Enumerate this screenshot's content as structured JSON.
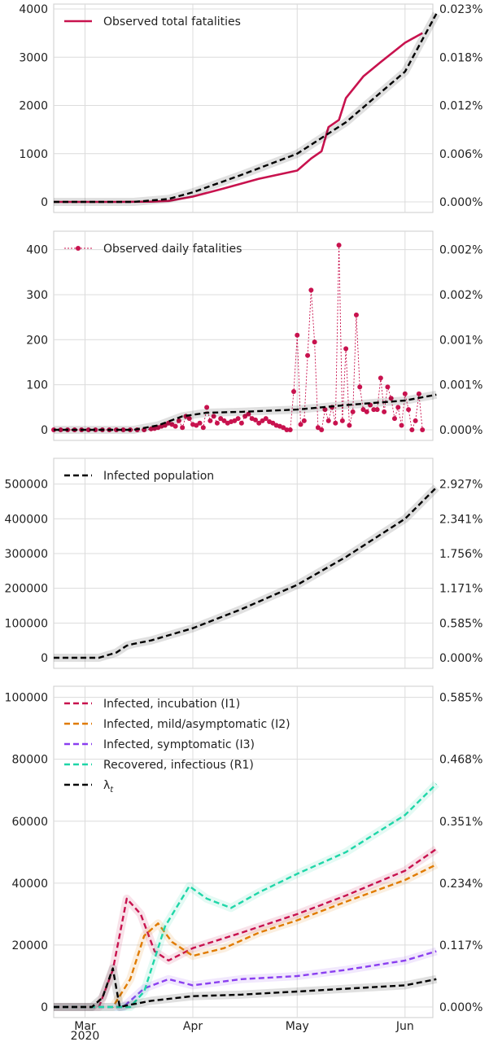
{
  "colors": {
    "observed": "#c8124e",
    "model": "#000000",
    "i1": "#c8124e",
    "i2": "#e07b00",
    "i3": "#8a3ff0",
    "r1": "#1fd6a8",
    "grid": "#dcdcdc",
    "axes_bg": "#eaeaf2"
  },
  "chart_data": [
    {
      "type": "line",
      "panel": "cumulative_fatalities",
      "x_ticks": [
        "Mar\n2020",
        "Apr",
        "May",
        "Jun"
      ],
      "left_ticks": [
        "0",
        "1000",
        "2000",
        "3000",
        "4000"
      ],
      "right_ticks": [
        "0.000%",
        "0.006%",
        "0.012%",
        "0.018%",
        "0.023%"
      ],
      "ylim": [
        0,
        4000
      ],
      "legend": [
        "Observed total fatalities"
      ],
      "series": [
        {
          "name": "Observed total fatalities",
          "style": "solid",
          "color": "observed",
          "x": [
            "2020-02-21",
            "2020-03-10",
            "2020-03-20",
            "2020-03-25",
            "2020-04-01",
            "2020-04-10",
            "2020-04-20",
            "2020-05-01",
            "2020-05-05",
            "2020-05-08",
            "2020-05-10",
            "2020-05-13",
            "2020-05-15",
            "2020-05-20",
            "2020-05-25",
            "2020-06-01",
            "2020-06-06"
          ],
          "y": [
            0,
            0,
            5,
            20,
            110,
            280,
            480,
            650,
            900,
            1050,
            1550,
            1700,
            2150,
            2600,
            2900,
            3300,
            3500
          ]
        },
        {
          "name": "model",
          "style": "dashed",
          "color": "model",
          "x": [
            "2020-02-21",
            "2020-03-15",
            "2020-03-25",
            "2020-04-01",
            "2020-04-15",
            "2020-05-01",
            "2020-05-15",
            "2020-06-01",
            "2020-06-10"
          ],
          "y": [
            0,
            0,
            60,
            200,
            560,
            1000,
            1650,
            2700,
            3900
          ]
        }
      ]
    },
    {
      "type": "line",
      "panel": "daily_fatalities",
      "x_ticks": [
        "Mar\n2020",
        "Apr",
        "May",
        "Jun"
      ],
      "left_ticks": [
        "0",
        "100",
        "200",
        "300",
        "400"
      ],
      "right_ticks": [
        "0.000%",
        "0.001%",
        "0.001%",
        "0.002%",
        "0.002%"
      ],
      "ylim": [
        0,
        430
      ],
      "legend": [
        "Observed daily fatalities"
      ],
      "series": [
        {
          "name": "Observed daily fatalities",
          "style": "dotted-markers",
          "color": "observed",
          "x": [
            "2020-02-21",
            "2020-02-23",
            "2020-02-25",
            "2020-02-27",
            "2020-02-29",
            "2020-03-02",
            "2020-03-04",
            "2020-03-06",
            "2020-03-08",
            "2020-03-10",
            "2020-03-12",
            "2020-03-14",
            "2020-03-16",
            "2020-03-18",
            "2020-03-20",
            "2020-03-21",
            "2020-03-22",
            "2020-03-23",
            "2020-03-24",
            "2020-03-25",
            "2020-03-26",
            "2020-03-27",
            "2020-03-28",
            "2020-03-29",
            "2020-03-30",
            "2020-03-31",
            "2020-04-01",
            "2020-04-02",
            "2020-04-03",
            "2020-04-04",
            "2020-04-05",
            "2020-04-06",
            "2020-04-07",
            "2020-04-08",
            "2020-04-09",
            "2020-04-10",
            "2020-04-11",
            "2020-04-12",
            "2020-04-13",
            "2020-04-14",
            "2020-04-15",
            "2020-04-16",
            "2020-04-17",
            "2020-04-18",
            "2020-04-19",
            "2020-04-20",
            "2020-04-21",
            "2020-04-22",
            "2020-04-23",
            "2020-04-24",
            "2020-04-25",
            "2020-04-26",
            "2020-04-27",
            "2020-04-28",
            "2020-04-29",
            "2020-04-30",
            "2020-05-01",
            "2020-05-02",
            "2020-05-03",
            "2020-05-04",
            "2020-05-05",
            "2020-05-06",
            "2020-05-07",
            "2020-05-08",
            "2020-05-09",
            "2020-05-10",
            "2020-05-11",
            "2020-05-12",
            "2020-05-13",
            "2020-05-14",
            "2020-05-15",
            "2020-05-16",
            "2020-05-17",
            "2020-05-18",
            "2020-05-19",
            "2020-05-20",
            "2020-05-21",
            "2020-05-22",
            "2020-05-23",
            "2020-05-24",
            "2020-05-25",
            "2020-05-26",
            "2020-05-27",
            "2020-05-28",
            "2020-05-29",
            "2020-05-30",
            "2020-05-31",
            "2020-06-01",
            "2020-06-02",
            "2020-06-03",
            "2020-06-04",
            "2020-06-05",
            "2020-06-06"
          ],
          "y": [
            0,
            0,
            0,
            0,
            0,
            0,
            0,
            0,
            0,
            0,
            0,
            0,
            0,
            0,
            2,
            3,
            5,
            8,
            10,
            15,
            12,
            8,
            20,
            5,
            30,
            25,
            12,
            10,
            15,
            5,
            50,
            20,
            30,
            15,
            25,
            20,
            15,
            18,
            20,
            25,
            15,
            30,
            35,
            25,
            22,
            15,
            20,
            25,
            18,
            15,
            10,
            8,
            5,
            0,
            0,
            85,
            210,
            12,
            20,
            165,
            310,
            195,
            5,
            0,
            45,
            20,
            50,
            15,
            410,
            20,
            180,
            10,
            40,
            255,
            95,
            45,
            40,
            55,
            45,
            45,
            115,
            40,
            95,
            70,
            25,
            50,
            10,
            80,
            45,
            0,
            20,
            80,
            0
          ]
        },
        {
          "name": "model",
          "style": "dashed",
          "color": "model",
          "x": [
            "2020-02-21",
            "2020-03-15",
            "2020-03-22",
            "2020-03-29",
            "2020-04-05",
            "2020-04-15",
            "2020-05-01",
            "2020-05-15",
            "2020-06-01",
            "2020-06-10"
          ],
          "y": [
            0,
            0,
            10,
            30,
            38,
            40,
            45,
            55,
            65,
            78
          ]
        }
      ]
    },
    {
      "type": "line",
      "panel": "infected_population",
      "x_ticks": [
        "Mar\n2020",
        "Apr",
        "May",
        "Jun"
      ],
      "left_ticks": [
        "0",
        "100000",
        "200000",
        "300000",
        "400000",
        "500000"
      ],
      "right_ticks": [
        "0.000%",
        "0.585%",
        "1.171%",
        "1.756%",
        "2.341%",
        "2.927%"
      ],
      "ylim": [
        0,
        560000
      ],
      "legend": [
        "Infected population"
      ],
      "series": [
        {
          "name": "Infected population",
          "style": "dashed",
          "color": "model",
          "x": [
            "2020-02-21",
            "2020-03-05",
            "2020-03-10",
            "2020-03-13",
            "2020-03-15",
            "2020-03-20",
            "2020-04-01",
            "2020-04-15",
            "2020-05-01",
            "2020-05-15",
            "2020-06-01",
            "2020-06-10"
          ],
          "y": [
            0,
            0,
            15000,
            35000,
            40000,
            50000,
            85000,
            140000,
            210000,
            290000,
            400000,
            490000
          ]
        }
      ]
    },
    {
      "type": "line",
      "panel": "compartments",
      "x_ticks": [
        "Mar\n2020",
        "Apr",
        "May",
        "Jun"
      ],
      "left_ticks": [
        "0",
        "20000",
        "40000",
        "60000",
        "80000",
        "100000"
      ],
      "right_ticks": [
        "0.000%",
        "0.117%",
        "0.234%",
        "0.351%",
        "0.468%",
        "0.585%"
      ],
      "ylim": [
        0,
        102000
      ],
      "legend": [
        "Infected, incubation (I1)",
        "Infected, mild/asymptomatic (I2)",
        "Infected, symptomatic (I3)",
        "Recovered, infectious (R1)",
        "λt"
      ],
      "series": [
        {
          "name": "Infected, incubation (I1)",
          "style": "dashed",
          "color": "i1",
          "x": [
            "2020-02-21",
            "2020-03-05",
            "2020-03-09",
            "2020-03-13",
            "2020-03-17",
            "2020-03-21",
            "2020-03-25",
            "2020-04-01",
            "2020-04-15",
            "2020-05-01",
            "2020-05-15",
            "2020-06-01",
            "2020-06-10"
          ],
          "y": [
            0,
            0,
            12000,
            35000,
            30000,
            18000,
            15000,
            19000,
            24000,
            30000,
            36000,
            44000,
            51000
          ]
        },
        {
          "name": "Infected, mild/asymptomatic (I2)",
          "style": "dashed",
          "color": "i2",
          "x": [
            "2020-02-21",
            "2020-03-09",
            "2020-03-14",
            "2020-03-18",
            "2020-03-22",
            "2020-03-26",
            "2020-04-01",
            "2020-04-10",
            "2020-04-20",
            "2020-05-01",
            "2020-05-15",
            "2020-06-01",
            "2020-06-10"
          ],
          "y": [
            0,
            0,
            9000,
            23000,
            27000,
            21000,
            16500,
            19000,
            24000,
            28000,
            34000,
            41000,
            46000
          ]
        },
        {
          "name": "Infected, symptomatic (I3)",
          "style": "dashed",
          "color": "i3",
          "x": [
            "2020-02-21",
            "2020-03-12",
            "2020-03-18",
            "2020-03-25",
            "2020-04-01",
            "2020-04-15",
            "2020-05-01",
            "2020-05-15",
            "2020-06-01",
            "2020-06-10"
          ],
          "y": [
            0,
            0,
            6000,
            9000,
            7000,
            9000,
            10000,
            12000,
            15000,
            18000
          ]
        },
        {
          "name": "Recovered, infectious (R1)",
          "style": "dashed",
          "color": "r1",
          "x": [
            "2020-02-21",
            "2020-03-14",
            "2020-03-18",
            "2020-03-24",
            "2020-03-31",
            "2020-04-05",
            "2020-04-12",
            "2020-04-20",
            "2020-05-01",
            "2020-05-15",
            "2020-06-01",
            "2020-06-10"
          ],
          "y": [
            0,
            0,
            5000,
            26000,
            39000,
            35000,
            32000,
            37000,
            43000,
            50000,
            62000,
            72000
          ]
        },
        {
          "name": "λt",
          "style": "dashed",
          "color": "model",
          "x": [
            "2020-02-21",
            "2020-03-03",
            "2020-03-06",
            "2020-03-09",
            "2020-03-10",
            "2020-03-11",
            "2020-03-13",
            "2020-03-20",
            "2020-04-01",
            "2020-04-15",
            "2020-05-01",
            "2020-06-01",
            "2020-06-10"
          ],
          "y": [
            0,
            0,
            3000,
            12500,
            6000,
            0,
            500,
            2000,
            3500,
            4000,
            5000,
            7000,
            9000
          ]
        }
      ]
    }
  ]
}
